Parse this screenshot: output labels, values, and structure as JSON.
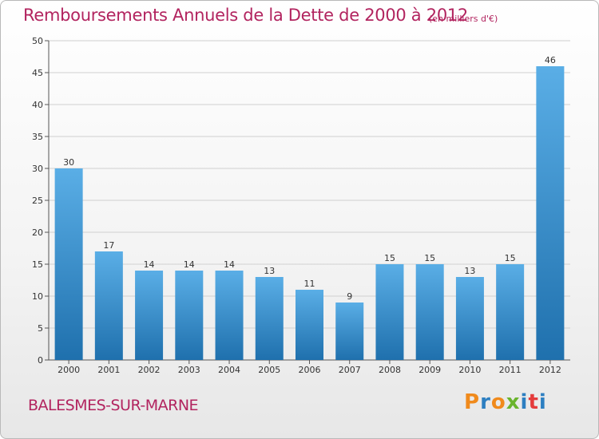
{
  "header": {
    "title": "Remboursements Annuels de la Dette de 2000 à 2012",
    "unit": "(en milliers d'€)"
  },
  "footer": {
    "commune": "BALESMES-SUR-MARNE",
    "logo": "Proxiti"
  },
  "colors": {
    "title": "#b2245f",
    "bar_top": "#5aaee6",
    "bar_bottom": "#1f70ad",
    "grid": "#d0d0d0",
    "logo_letters": [
      "#f08a1c",
      "#2d7fc1",
      "#f08a1c",
      "#6ab42d",
      "#2d7fc1",
      "#e43c3c",
      "#2d7fc1"
    ]
  },
  "chart_data": {
    "type": "bar",
    "categories": [
      "2000",
      "2001",
      "2002",
      "2003",
      "2004",
      "2005",
      "2006",
      "2007",
      "2008",
      "2009",
      "2010",
      "2011",
      "2012"
    ],
    "values": [
      30,
      17,
      14,
      14,
      14,
      13,
      11,
      9,
      15,
      15,
      13,
      15,
      46
    ],
    "title": "Remboursements Annuels de la Dette de 2000 à 2012",
    "subtitle": "(en milliers d'€)",
    "xlabel": "",
    "ylabel": "",
    "ylim": [
      0,
      50
    ],
    "yticks": [
      0,
      5,
      10,
      15,
      20,
      25,
      30,
      35,
      40,
      45,
      50
    ],
    "grid": true,
    "data_labels": true
  }
}
